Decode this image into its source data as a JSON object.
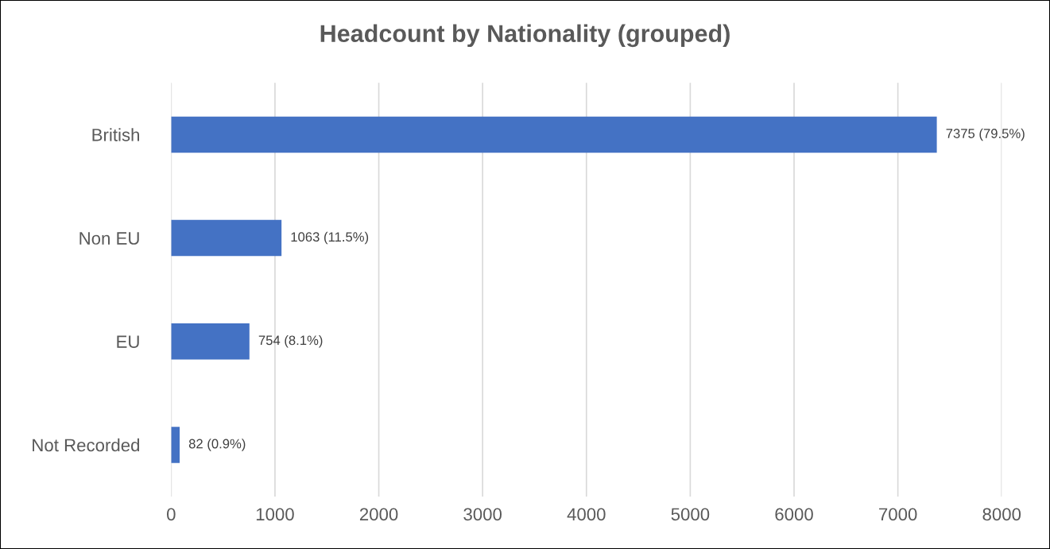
{
  "chart_data": {
    "type": "bar",
    "orientation": "horizontal",
    "title": "Headcount by Nationality (grouped)",
    "categories": [
      "British",
      "Non EU",
      "EU",
      "Not Recorded"
    ],
    "values": [
      7375,
      1063,
      754,
      82
    ],
    "value_labels": [
      "7375 (79.5%)",
      "1063 (11.5%)",
      "754 (8.1%)",
      "82 (0.9%)"
    ],
    "color": "#4472c4",
    "xlim": [
      0,
      8000
    ],
    "xticks": [
      0,
      1000,
      2000,
      3000,
      4000,
      5000,
      6000,
      7000,
      8000
    ],
    "grid": "x",
    "legend": false
  }
}
